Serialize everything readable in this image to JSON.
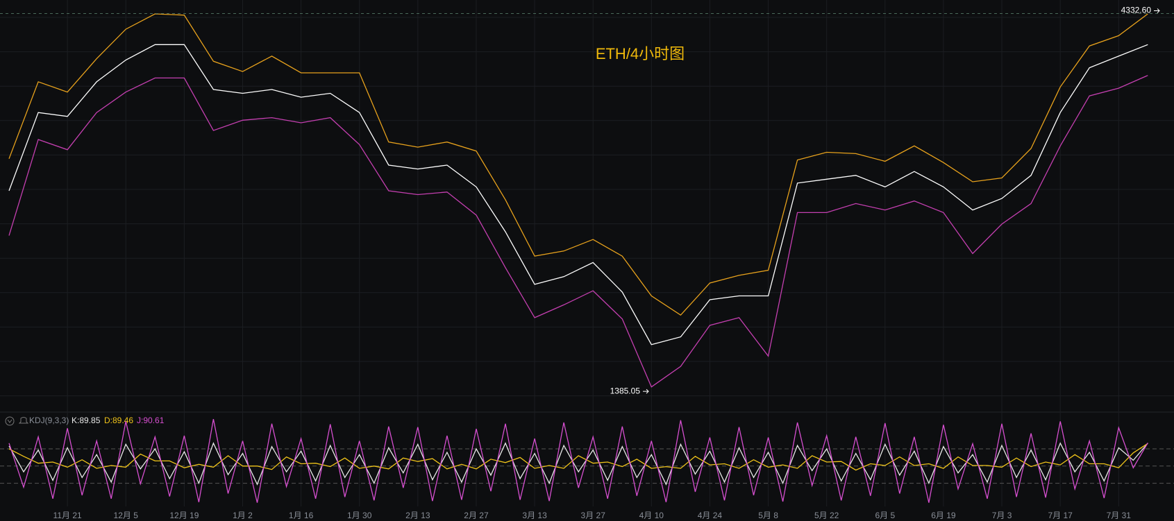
{
  "chart_data": [
    {
      "type": "line",
      "title": "ETH/4小时图",
      "categories": [
        null,
        null,
        "11月 21",
        null,
        "12月 5",
        null,
        "12月 19",
        null,
        "1月 2",
        null,
        "1月 16",
        null,
        "1月 30",
        null,
        "2月 13",
        null,
        "2月 27",
        null,
        "3月 13",
        null,
        "3月 27",
        null,
        "4月 10",
        null,
        "4月 24",
        null,
        "5月 8",
        null,
        "5月 22",
        null,
        "6月 5",
        null,
        "6月 19",
        null,
        "7月 3",
        null,
        "7月 17",
        null,
        "7月 31",
        null
      ],
      "series": [
        {
          "color": "#e8a21c",
          "values": [
            3200,
            3800,
            3720,
            3980,
            4210,
            4330,
            4320,
            3960,
            3880,
            4000,
            3870,
            3870,
            3870,
            3330,
            3290,
            3330,
            3260,
            2880,
            2440,
            2480,
            2570,
            2440,
            2130,
            1980,
            2230,
            2290,
            2330,
            3190,
            3250,
            3240,
            3180,
            3300,
            3170,
            3020,
            3050,
            3280,
            3760,
            4080,
            4160,
            4330
          ]
        },
        {
          "color": "#ffffff",
          "values": [
            2950,
            3560,
            3530,
            3800,
            3970,
            4090,
            4090,
            3740,
            3710,
            3740,
            3680,
            3710,
            3560,
            3150,
            3120,
            3150,
            2980,
            2630,
            2220,
            2280,
            2390,
            2160,
            1750,
            1810,
            2100,
            2130,
            2130,
            3010,
            3040,
            3070,
            2980,
            3100,
            2980,
            2800,
            2890,
            3070,
            3560,
            3910,
            4000,
            4090
          ]
        },
        {
          "color": "#c43fb0",
          "values": [
            2600,
            3350,
            3270,
            3560,
            3720,
            3830,
            3830,
            3420,
            3500,
            3520,
            3480,
            3520,
            3310,
            2950,
            2920,
            2940,
            2760,
            2350,
            1960,
            2060,
            2170,
            1950,
            1420,
            1580,
            1900,
            1960,
            1660,
            2780,
            2780,
            2850,
            2800,
            2870,
            2780,
            2460,
            2690,
            2850,
            3300,
            3690,
            3750,
            3850
          ]
        }
      ],
      "ylim": [
        1256,
        4438
      ],
      "annotations": [
        {
          "value": 4332.6,
          "label": "4332.60"
        },
        {
          "value": 1385.05,
          "label": "1385.05"
        }
      ]
    },
    {
      "type": "line",
      "title": "KDJ(9,3,3)",
      "series": [
        {
          "name": "K:89.85",
          "color": "#e8e8e8",
          "values": [
            85,
            40,
            78,
            25,
            82,
            30,
            70,
            22,
            88,
            45,
            80,
            28,
            75,
            20,
            90,
            35,
            72,
            18,
            84,
            40,
            76,
            24,
            86,
            30,
            70,
            20,
            82,
            38,
            88,
            26,
            74,
            22,
            80,
            34,
            90,
            28,
            72,
            20,
            86,
            40,
            78,
            25,
            84,
            30,
            70,
            18,
            88,
            36,
            76,
            22,
            82,
            30,
            74,
            20,
            86,
            42,
            80,
            24,
            72,
            26,
            88,
            34,
            76,
            20,
            84,
            38,
            70,
            22,
            86,
            30,
            78,
            26,
            90,
            40,
            74,
            24,
            82,
            60,
            89.85
          ]
        },
        {
          "name": "D:89.46",
          "color": "#f0c419",
          "values": [
            80,
            67,
            55,
            57,
            48,
            61,
            46,
            51,
            48,
            71,
            59,
            59,
            47,
            53,
            48,
            68,
            50,
            50,
            44,
            66,
            54,
            55,
            49,
            64,
            46,
            50,
            45,
            64,
            58,
            63,
            45,
            53,
            45,
            62,
            56,
            65,
            46,
            51,
            46,
            68,
            55,
            57,
            49,
            62,
            46,
            49,
            46,
            67,
            52,
            54,
            46,
            61,
            48,
            52,
            46,
            68,
            57,
            58,
            43,
            54,
            51,
            66,
            51,
            54,
            46,
            66,
            51,
            51,
            48,
            64,
            49,
            57,
            52,
            70,
            54,
            54,
            47,
            73,
            89.46
          ]
        },
        {
          "name": "J:90.61",
          "color": "#d64fd0",
          "values": [
            90,
            13,
            101,
            -7,
            116,
            -1,
            94,
            -7,
            128,
            19,
            101,
            -3,
            103,
            -13,
            132,
            2,
            94,
            -14,
            124,
            14,
            98,
            -7,
            123,
            -4,
            94,
            -10,
            119,
            12,
            118,
            -11,
            103,
            -9,
            115,
            6,
            124,
            -9,
            98,
            -11,
            126,
            12,
            101,
            -7,
            119,
            -2,
            94,
            -13,
            130,
            5,
            100,
            -10,
            118,
            -1,
            100,
            -12,
            126,
            16,
            103,
            -10,
            101,
            -2,
            125,
            2,
            101,
            -14,
            122,
            10,
            89,
            -7,
            124,
            -4,
            107,
            -5,
            128,
            10,
            94,
            -6,
            117,
            47,
            90.61
          ]
        }
      ],
      "ylim": [
        -20,
        135
      ],
      "levels": [
        20,
        50,
        80
      ]
    }
  ]
}
